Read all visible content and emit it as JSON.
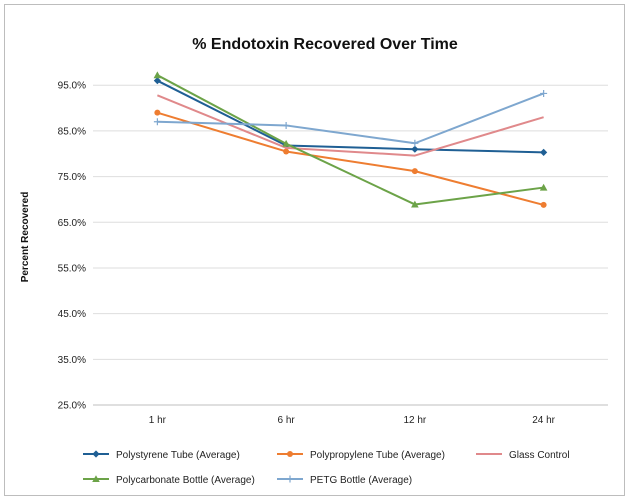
{
  "chart_data": {
    "type": "line",
    "title": "% Endotoxin Recovered Over Time",
    "xlabel": "",
    "ylabel": "Percent Recovered",
    "categories": [
      "1 hr",
      "6 hr",
      "12 hr",
      "24 hr"
    ],
    "ylim": [
      25,
      100
    ],
    "yticks": [
      "25.0%",
      "35.0%",
      "45.0%",
      "55.0%",
      "65.0%",
      "75.0%",
      "85.0%",
      "95.0%"
    ],
    "ytick_values": [
      25,
      35,
      45,
      55,
      65,
      75,
      85,
      95
    ],
    "grid": "horizontal",
    "legend_position": "bottom",
    "series": [
      {
        "name": "Polystyrene Tube (Average)",
        "values": [
          96.0,
          81.8,
          81.0,
          80.3
        ],
        "color": "#1f5f94",
        "marker": "diamond"
      },
      {
        "name": "Polypropylene Tube (Average)",
        "values": [
          89.0,
          80.5,
          76.2,
          68.8
        ],
        "color": "#ee7d31",
        "marker": "circle"
      },
      {
        "name": "Glass Control",
        "values": [
          92.8,
          81.3,
          79.6,
          88.0
        ],
        "color": "#e0898b",
        "marker": "none"
      },
      {
        "name": "Polycarbonate Bottle (Average)",
        "values": [
          97.2,
          82.2,
          68.9,
          72.6
        ],
        "color": "#6ca348",
        "marker": "triangle"
      },
      {
        "name": "PETG Bottle (Average)",
        "values": [
          87.0,
          86.2,
          82.3,
          93.2
        ],
        "color": "#7ea7cf",
        "marker": "plus"
      }
    ]
  }
}
